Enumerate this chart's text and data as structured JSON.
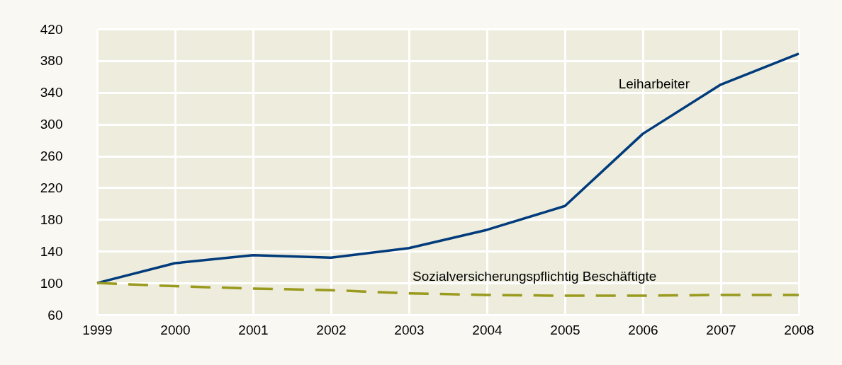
{
  "chart_data": {
    "type": "line",
    "x": [
      1999,
      2000,
      2001,
      2002,
      2003,
      2004,
      2005,
      2006,
      2007,
      2008
    ],
    "xlim": [
      1999,
      2008
    ],
    "xticks": [
      1999,
      2000,
      2001,
      2002,
      2003,
      2004,
      2005,
      2006,
      2007,
      2008
    ],
    "ylim": [
      60,
      420
    ],
    "yticks": [
      60,
      100,
      140,
      180,
      220,
      260,
      300,
      340,
      380,
      420
    ],
    "grid": true,
    "series": [
      {
        "name": "Leiharbeiter",
        "color": "#003b7b",
        "line_style": "solid",
        "values": [
          100,
          125,
          135,
          132,
          144,
          167,
          197,
          288,
          350,
          389
        ]
      },
      {
        "name": "Sozialversicherungspflichtig Beschäftigte",
        "color": "#999a1e",
        "line_style": "dashed",
        "values": [
          100,
          96,
          93,
          91,
          87,
          85,
          84,
          84,
          85,
          85
        ]
      }
    ]
  }
}
